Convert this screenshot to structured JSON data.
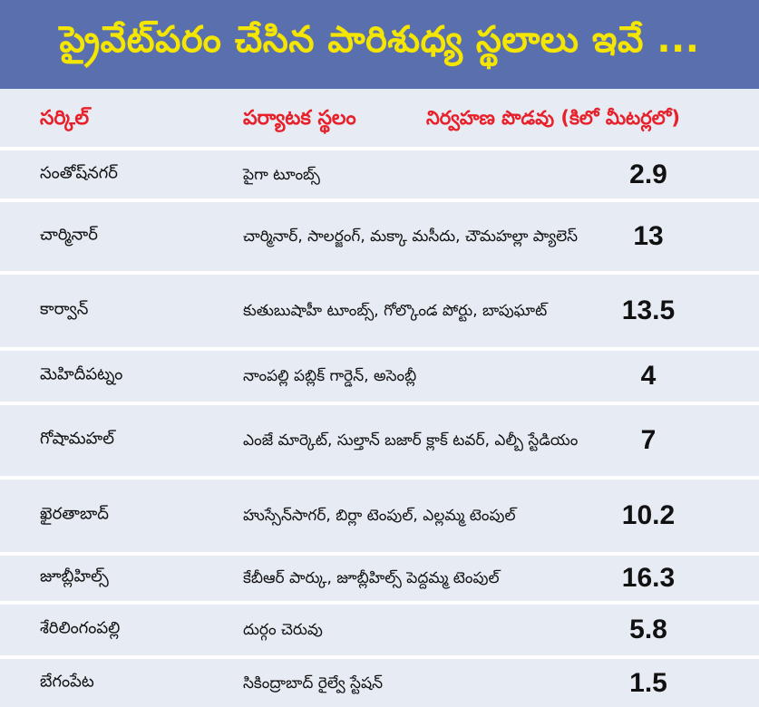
{
  "title": "ప్రైవేట్‌పరం చేసిన పారిశుధ్య స్థలాలు ఇవే ...",
  "headers": {
    "circle": "సర్కిల్",
    "place": "పర్యాటక స్థలం",
    "length": "నిర్వహణ పొడవు (కిలో మీటర్లలో)"
  },
  "rows": [
    {
      "circle": "సంతోష్‌నగర్",
      "place": "పైగా టూంబ్స్",
      "length": "2.9"
    },
    {
      "circle": "చార్మినార్",
      "place": "చార్మినార్, సాలర్జంగ్, మక్కా మసీదు, చౌమహల్లా ప్యాలెస్",
      "length": "13"
    },
    {
      "circle": "కార్వాన్",
      "place": "కుతుబుషాహీ టూంబ్స్, గోల్కొండ పోర్టు, బాపుఘాట్",
      "length": "13.5"
    },
    {
      "circle": "మెహిదీపట్నం",
      "place": "నాంపల్లి పబ్లిక్ గార్డెన్, అసెంబ్లీ",
      "length": "4"
    },
    {
      "circle": "గోషామహల్",
      "place": "ఎంజే మార్కెట్, సుల్తాన్ బజార్ క్లాక్ టవర్, ఎల్బీ స్టేడియం",
      "length": "7"
    },
    {
      "circle": "ఖైరతాబాద్",
      "place": "హుస్సేన్‌సాగర్, బిర్లా టెంపుల్, ఎల్లమ్మ టెంపుల్",
      "length": "10.2"
    },
    {
      "circle": "జూబ్లీహిల్స్",
      "place": "కేబీఆర్ పార్కు, జూబ్లీహిల్స్ పెద్దమ్మ టెంపుల్",
      "length": "16.3"
    },
    {
      "circle": "శేరిలింగంపల్లి",
      "place": "దుర్గం చెరువు",
      "length": "5.8"
    },
    {
      "circle": "బేగంపేట",
      "place": "సికింద్రాబాద్ రైల్వే స్టేషన్",
      "length": "1.5"
    }
  ]
}
